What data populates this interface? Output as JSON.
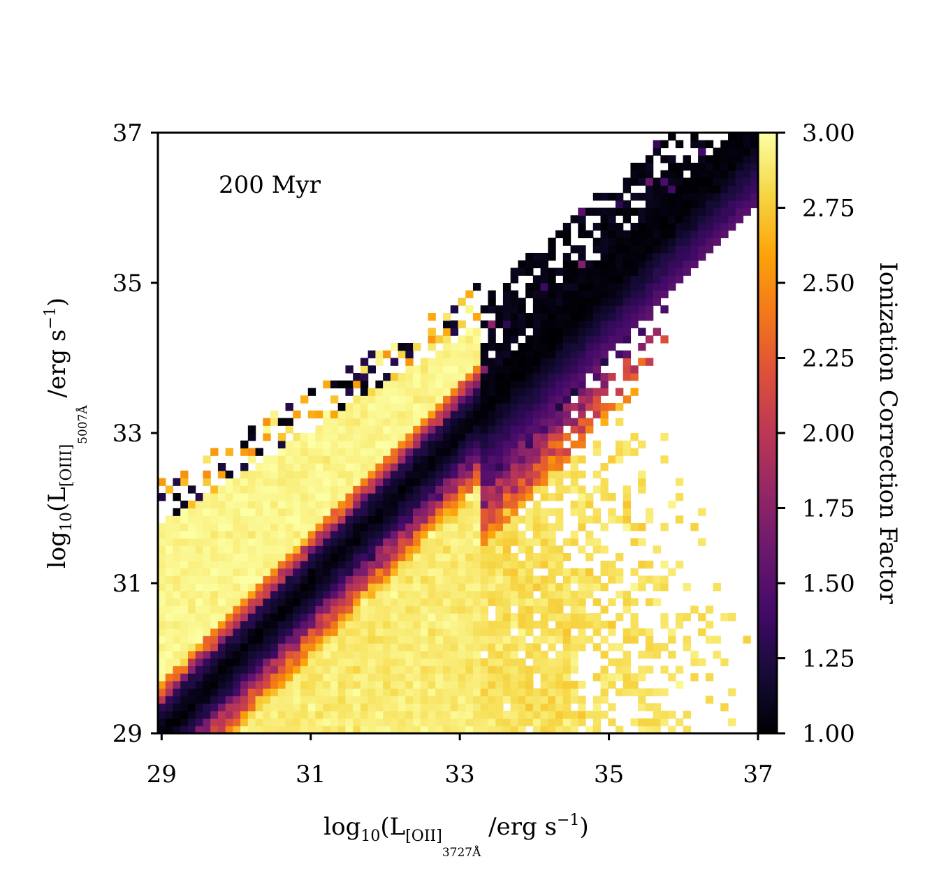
{
  "chart_data": {
    "type": "heatmap",
    "annotation": "200 Myr",
    "xlabel": {
      "prefix": "log",
      "prefix_sub": "10",
      "open": "(L",
      "line_sub": "[OII]",
      "line_subsub": "3727Å",
      "unit": " /erg s",
      "unit_sup": "−1",
      "close": ")"
    },
    "ylabel": {
      "prefix": "log",
      "prefix_sub": "10",
      "open": "(L",
      "line_sub": "[OIII]",
      "line_subsub": "5007Å",
      "unit": " /erg s",
      "unit_sup": "−1",
      "close": ")"
    },
    "xlim": [
      28.95,
      37.0
    ],
    "ylim": [
      29.0,
      37.0
    ],
    "xticks": [
      "29",
      "31",
      "33",
      "35",
      "37"
    ],
    "yticks": [
      "29",
      "31",
      "33",
      "35",
      "37"
    ],
    "colorbar": {
      "label": "Ionization Correction Factor",
      "range": [
        1.0,
        3.0
      ],
      "ticks": [
        "1.00",
        "1.25",
        "1.50",
        "1.75",
        "2.00",
        "2.25",
        "2.50",
        "2.75",
        "3.00"
      ],
      "colormap": "inferno"
    },
    "bins": 80,
    "regions": {
      "ridge_line": "log L[OIII] ≈ log L[OII] (ICF ≈ 1.0–1.2)",
      "upper_left_band": "ICF ≈ 3.0",
      "lower_right_region": "ICF ≈ 2.8–3.0",
      "transition_edges": "ICF ≈ 1.8–2.6",
      "upper_tail": "log L[OII] 33.5–36.5, log L[OIII] 34–36.8, ICF ≈ 1.0"
    }
  }
}
